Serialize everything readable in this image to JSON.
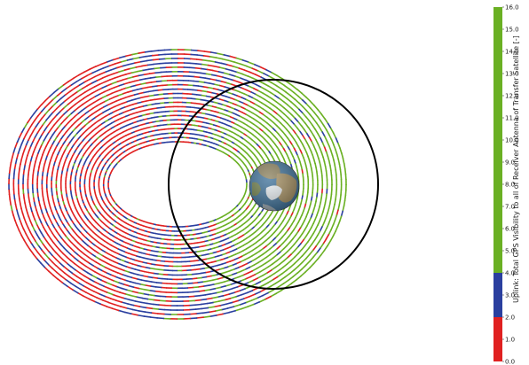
{
  "chart_data": {
    "type": "orbit-visibility-plot",
    "title": "",
    "central_body": "Earth",
    "orbits": [
      {
        "name": "",
        "kind": "eccentric-transfer-orbits",
        "colored_by": "colorbar"
      },
      {
        "name": "",
        "kind": "circular-reference-orbit",
        "color": "#000000"
      }
    ],
    "colorbar": {
      "label": "Uplink: Total GPS Visibility to all of Receiver  Antenna of Transfer  Satellite [-]",
      "ticks": [
        "0.0",
        "1.0",
        "2.0",
        "3.0",
        "4.0",
        "5.0",
        "6.0",
        "7.0",
        "8.0",
        "9.0",
        "10.0",
        "11.0",
        "12.0",
        "13.0",
        "14.0",
        "15.0",
        "16.0"
      ],
      "range": [
        0,
        16
      ],
      "segments": [
        {
          "from": 0,
          "to": 2,
          "color": "#e02020"
        },
        {
          "from": 2,
          "to": 4,
          "color": "#2a3f9f"
        },
        {
          "from": 4,
          "to": 16,
          "color": "#6ab023"
        }
      ]
    }
  }
}
